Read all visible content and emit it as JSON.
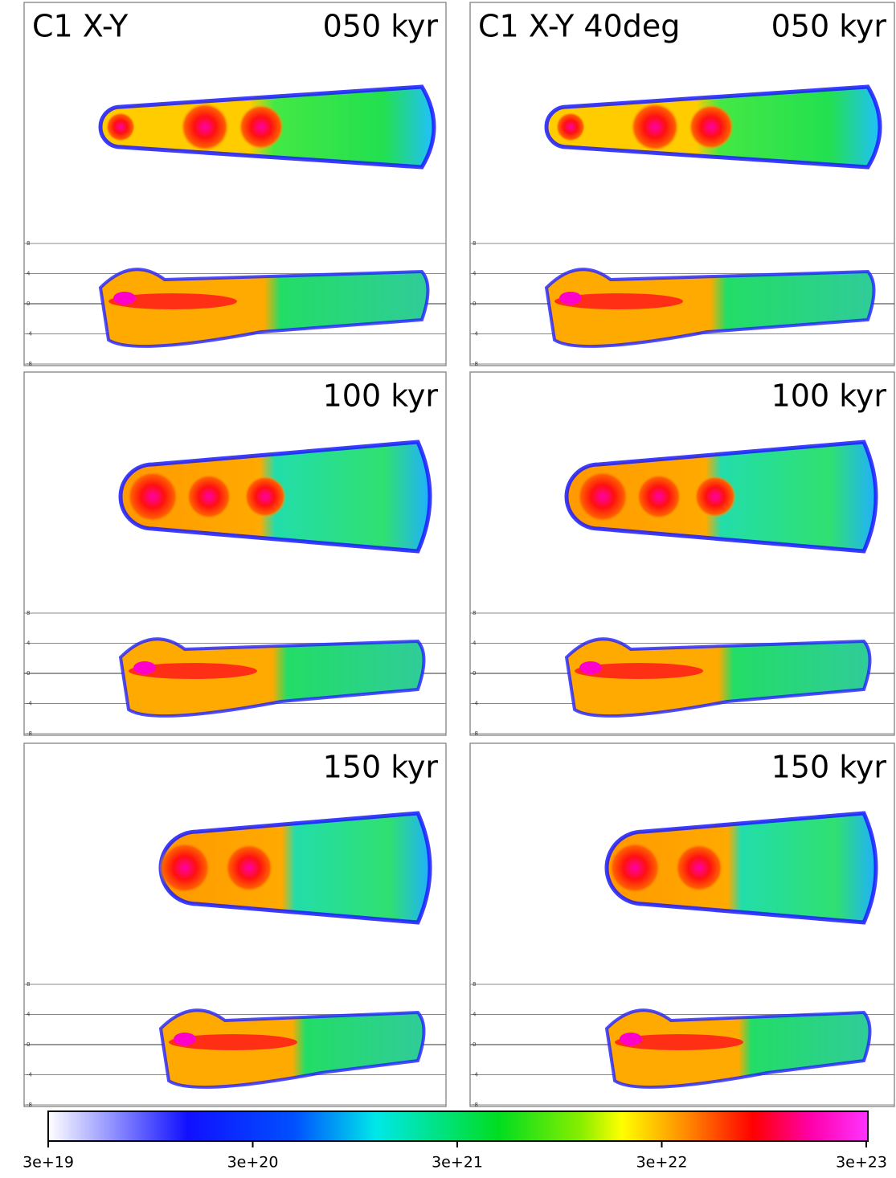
{
  "panels": [
    {
      "title": "C1 X-Y",
      "time": "050 kyr"
    },
    {
      "title": "C1 X-Y 40deg",
      "time": "050 kyr"
    },
    {
      "time": "100 kyr"
    },
    {
      "time": "100 kyr"
    },
    {
      "time": "150 kyr"
    },
    {
      "time": "150 kyr"
    }
  ],
  "strip_ticks": [
    "8",
    "4",
    "0",
    "-4",
    "-8"
  ],
  "colorbar": {
    "ticks": [
      "3e+19",
      "3e+20",
      "3e+21",
      "3e+22",
      "3e+23"
    ]
  }
}
